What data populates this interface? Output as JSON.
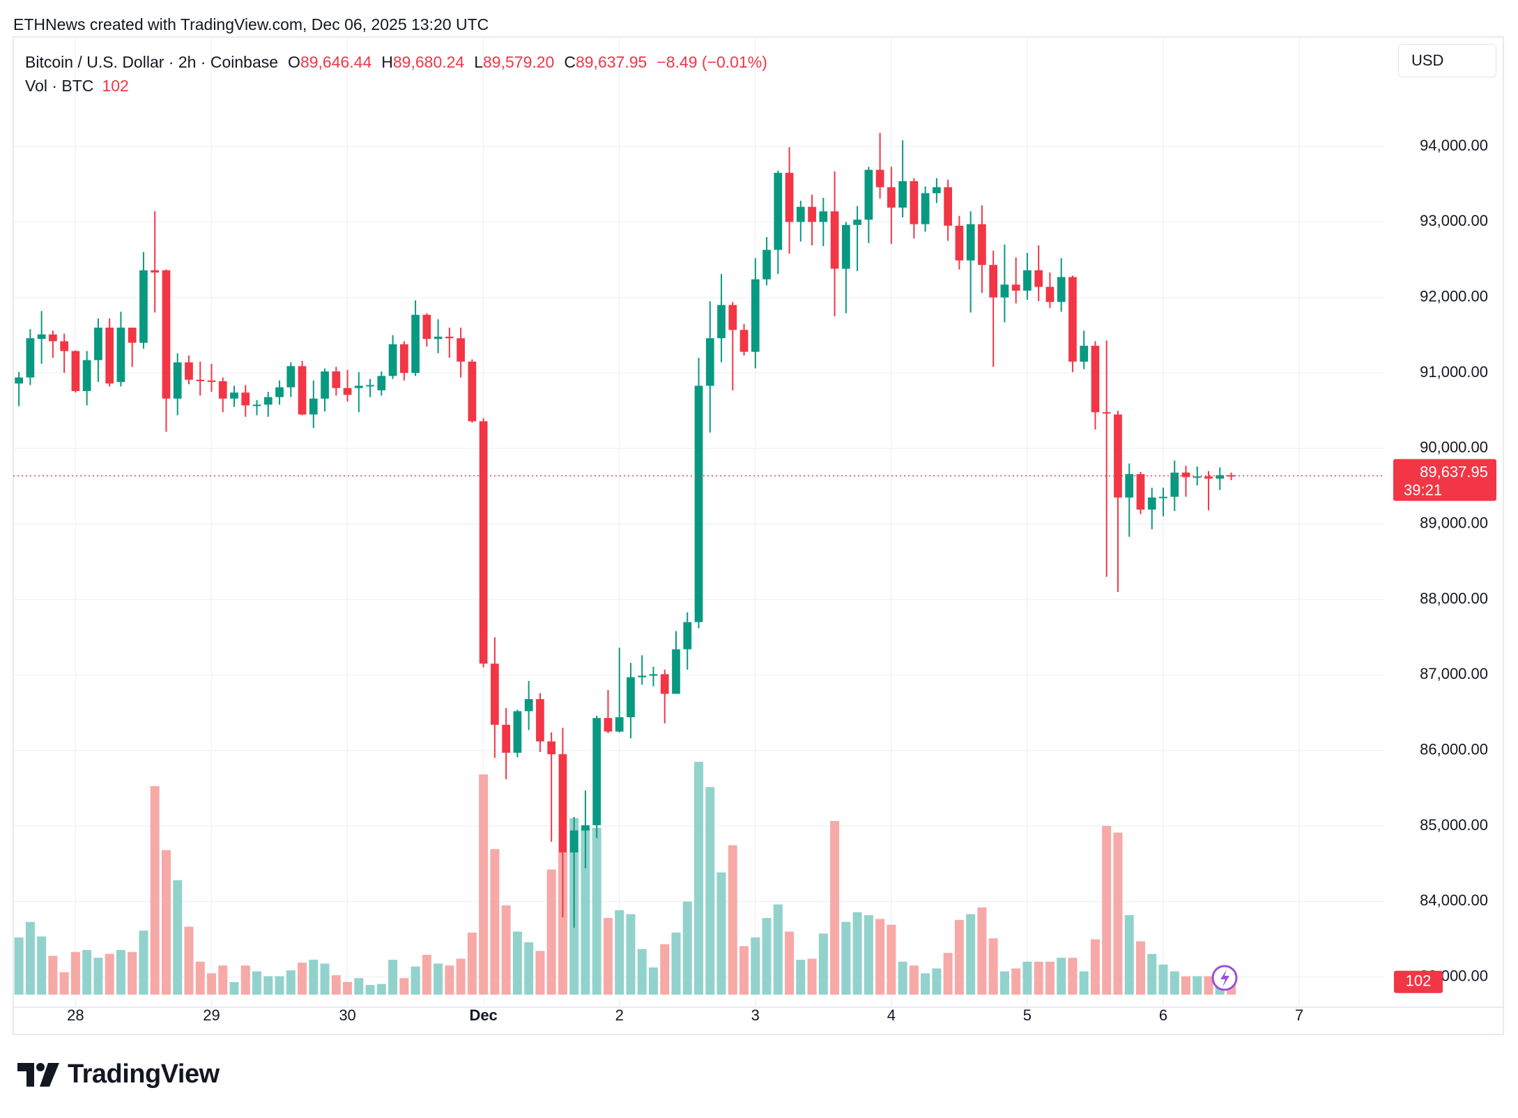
{
  "watermark": "ETHNews created with TradingView.com, Dec 06, 2025 13:20 UTC",
  "brand": "TradingView",
  "chart_data": {
    "type": "candlestick",
    "title": "Bitcoin / U.S. Dollar · 2h · Coinbase",
    "legend_values": [
      {
        "key": "O",
        "label": "89,646.44"
      },
      {
        "key": "H",
        "label": "89,680.24"
      },
      {
        "key": "L",
        "label": "89,579.20"
      },
      {
        "key": "C",
        "label": "89,637.95"
      }
    ],
    "change_label": "−8.49 (−0.01%)",
    "volume_title": "Vol · BTC",
    "volume_legend_label": "102",
    "price_axis_unit": "USD",
    "last_price_label": "89,637.95",
    "countdown": "39:21",
    "volume_last_label": "102",
    "up_color": "#089981",
    "down_color": "#f23645",
    "volume_up_color": "#92d2cc",
    "volume_down_color": "#f7a9a7",
    "grid": true,
    "ylim": [
      82600,
      95450
    ],
    "yticks": [
      {
        "value": 83000,
        "label": "83,000.00"
      },
      {
        "value": 84000,
        "label": "84,000.00"
      },
      {
        "value": 85000,
        "label": "85,000.00"
      },
      {
        "value": 86000,
        "label": "86,000.00"
      },
      {
        "value": 87000,
        "label": "87,000.00"
      },
      {
        "value": 88000,
        "label": "88,000.00"
      },
      {
        "value": 89000,
        "label": "89,000.00"
      },
      {
        "value": 90000,
        "label": "90,000.00"
      },
      {
        "value": 91000,
        "label": "91,000.00"
      },
      {
        "value": 92000,
        "label": "92,000.00"
      },
      {
        "value": 93000,
        "label": "93,000.00"
      },
      {
        "value": 94000,
        "label": "94,000.00"
      }
    ],
    "categories": [
      null,
      null,
      null,
      null,
      null,
      "28",
      null,
      null,
      null,
      null,
      null,
      null,
      null,
      null,
      null,
      null,
      null,
      "29",
      null,
      null,
      null,
      null,
      null,
      null,
      null,
      null,
      null,
      null,
      null,
      "30",
      null,
      null,
      null,
      null,
      null,
      null,
      null,
      null,
      null,
      null,
      null,
      "Dec",
      null,
      null,
      null,
      null,
      null,
      null,
      null,
      null,
      null,
      null,
      null,
      "2",
      null,
      null,
      null,
      null,
      null,
      null,
      null,
      null,
      null,
      null,
      null,
      "3",
      null,
      null,
      null,
      null,
      null,
      null,
      null,
      null,
      null,
      null,
      null,
      "4",
      null,
      null,
      null,
      null,
      null,
      null,
      null,
      null,
      null,
      null,
      null,
      "5",
      null,
      null,
      null,
      null,
      null,
      null,
      null,
      null,
      null,
      null,
      null,
      "6",
      null,
      null,
      null,
      null,
      null,
      null,
      null,
      null,
      null,
      null,
      null,
      "7",
      null,
      null,
      null,
      null,
      null,
      null,
      null
    ],
    "open": [
      90860,
      90940,
      91450,
      91510,
      91420,
      91290,
      90760,
      91170,
      91600,
      90880,
      91600,
      91400,
      92360,
      92360,
      90660,
      91140,
      90910,
      90900,
      90890,
      90660,
      90740,
      90570,
      90580,
      90680,
      90810,
      91090,
      90450,
      90660,
      91020,
      90800,
      90800,
      90830,
      90770,
      90960,
      91380,
      91000,
      91770,
      91450,
      91480,
      91460,
      91150,
      90360,
      87150,
      86340,
      85970,
      86520,
      86680,
      86120,
      85950,
      84650,
      84940,
      85010,
      86430,
      86250,
      86440,
      86970,
      86990,
      87010,
      86750,
      87340,
      87700,
      90830,
      91460,
      91900,
      91570,
      91280,
      92240,
      92630,
      93650,
      93000,
      93200,
      93000,
      93140,
      92380,
      92960,
      93030,
      93690,
      93460,
      93190,
      93540,
      92970,
      93380,
      93460,
      92950,
      92490,
      92970,
      92430,
      92000,
      92170,
      92090,
      92360,
      92140,
      91940,
      92270,
      91150,
      91360,
      90480,
      90450,
      89350,
      89660,
      89190,
      89350,
      89360,
      89680,
      89620,
      89630,
      89600,
      89646.44,
      null,
      null,
      null,
      null,
      null,
      null,
      null,
      null,
      null,
      null,
      null,
      null,
      null
    ],
    "high": [
      91010,
      91580,
      91820,
      91560,
      91520,
      91300,
      91290,
      91720,
      91720,
      91810,
      91600,
      92600,
      93140,
      92370,
      91260,
      91230,
      91150,
      91120,
      90940,
      90830,
      90840,
      90640,
      90750,
      90900,
      91140,
      91160,
      90900,
      91060,
      91080,
      91040,
      91010,
      90920,
      91020,
      91500,
      91420,
      91960,
      91790,
      91710,
      91600,
      91600,
      91180,
      90400,
      87500,
      86560,
      86540,
      86920,
      86760,
      86240,
      86300,
      85120,
      85470,
      86460,
      86800,
      87360,
      87160,
      87260,
      87110,
      87070,
      87580,
      87830,
      91200,
      91950,
      92310,
      91940,
      91650,
      92520,
      92800,
      93680,
      93990,
      93280,
      93360,
      93320,
      93670,
      93000,
      93210,
      93730,
      94180,
      93730,
      94080,
      93580,
      93470,
      93580,
      93560,
      93080,
      93140,
      93220,
      92620,
      92700,
      92530,
      92590,
      92690,
      92330,
      92520,
      92290,
      91560,
      91420,
      91430,
      90500,
      89800,
      89690,
      89480,
      89480,
      89840,
      89770,
      89760,
      89700,
      89750,
      89680.24,
      null,
      null,
      null,
      null,
      null,
      null,
      null,
      null,
      null,
      null,
      null,
      null,
      null
    ],
    "low": [
      90560,
      90840,
      91120,
      91200,
      91000,
      90740,
      90570,
      90880,
      90820,
      90820,
      91080,
      91320,
      91800,
      90220,
      90440,
      90850,
      90700,
      90750,
      90480,
      90550,
      90420,
      90440,
      90420,
      90580,
      90680,
      90440,
      90270,
      90490,
      90700,
      90620,
      90480,
      90680,
      90700,
      90920,
      90900,
      90960,
      91350,
      91260,
      91200,
      90940,
      90340,
      87100,
      85900,
      85620,
      85910,
      86270,
      85980,
      84790,
      83790,
      83650,
      84440,
      84840,
      86230,
      86240,
      86160,
      86870,
      86850,
      86360,
      86750,
      87070,
      87620,
      90210,
      91140,
      90770,
      91230,
      91060,
      92160,
      92310,
      92580,
      92740,
      92690,
      92680,
      91750,
      91790,
      92350,
      92720,
      93310,
      92710,
      93060,
      92780,
      92870,
      93250,
      92750,
      92370,
      91800,
      92060,
      91080,
      91670,
      91920,
      91970,
      91950,
      91860,
      91810,
      91010,
      91050,
      90250,
      88300,
      88100,
      88830,
      89130,
      88930,
      89100,
      89170,
      89360,
      89510,
      89180,
      89450,
      89579.2,
      null,
      null,
      null,
      null,
      null,
      null,
      null,
      null,
      null,
      null,
      null,
      null,
      null
    ],
    "close": [
      90940,
      91460,
      91510,
      91420,
      91290,
      90760,
      91170,
      91600,
      90860,
      91600,
      91400,
      92360,
      92330,
      90660,
      91140,
      90910,
      90900,
      90890,
      90660,
      90740,
      90570,
      90580,
      90680,
      90810,
      91090,
      90450,
      90660,
      91020,
      90800,
      90710,
      90830,
      90840,
      90960,
      91380,
      91000,
      91770,
      91450,
      91480,
      91460,
      91150,
      90360,
      87150,
      86340,
      85970,
      86520,
      86680,
      86120,
      85950,
      84650,
      84940,
      85010,
      86430,
      86250,
      86440,
      86970,
      86990,
      87010,
      86750,
      87340,
      87700,
      90830,
      91460,
      91900,
      91570,
      91280,
      92240,
      92630,
      93650,
      93000,
      93200,
      93000,
      93140,
      92380,
      92960,
      93030,
      93690,
      93460,
      93190,
      93540,
      92970,
      93380,
      93460,
      92950,
      92490,
      92970,
      92430,
      92000,
      92170,
      92090,
      92360,
      92140,
      91940,
      92270,
      91150,
      91360,
      90480,
      90470,
      89350,
      89660,
      89190,
      89350,
      89360,
      89680,
      89620,
      89630,
      89600,
      89646,
      89637.95,
      null,
      null,
      null,
      null,
      null,
      null,
      null,
      null,
      null,
      null,
      null,
      null,
      null
    ],
    "volume": [
      590,
      750,
      600,
      400,
      230,
      440,
      460,
      380,
      420,
      460,
      440,
      660,
      2150,
      1490,
      1180,
      700,
      340,
      220,
      300,
      130,
      300,
      240,
      190,
      190,
      250,
      330,
      360,
      320,
      200,
      130,
      170,
      100,
      110,
      360,
      170,
      290,
      410,
      320,
      300,
      370,
      640,
      2270,
      1500,
      920,
      650,
      540,
      450,
      1290,
      1470,
      1820,
      1720,
      1720,
      790,
      870,
      830,
      470,
      280,
      520,
      640,
      960,
      2400,
      2140,
      1260,
      1540,
      500,
      590,
      790,
      930,
      650,
      360,
      370,
      630,
      1790,
      750,
      850,
      820,
      780,
      720,
      340,
      300,
      220,
      270,
      430,
      770,
      830,
      900,
      580,
      240,
      270,
      340,
      340,
      340,
      380,
      380,
      240,
      570,
      1740,
      1670,
      820,
      550,
      420,
      310,
      240,
      190,
      190,
      190,
      190,
      102,
      null,
      null,
      null,
      null,
      null,
      null,
      null,
      null,
      null,
      null,
      null,
      null,
      null
    ]
  }
}
